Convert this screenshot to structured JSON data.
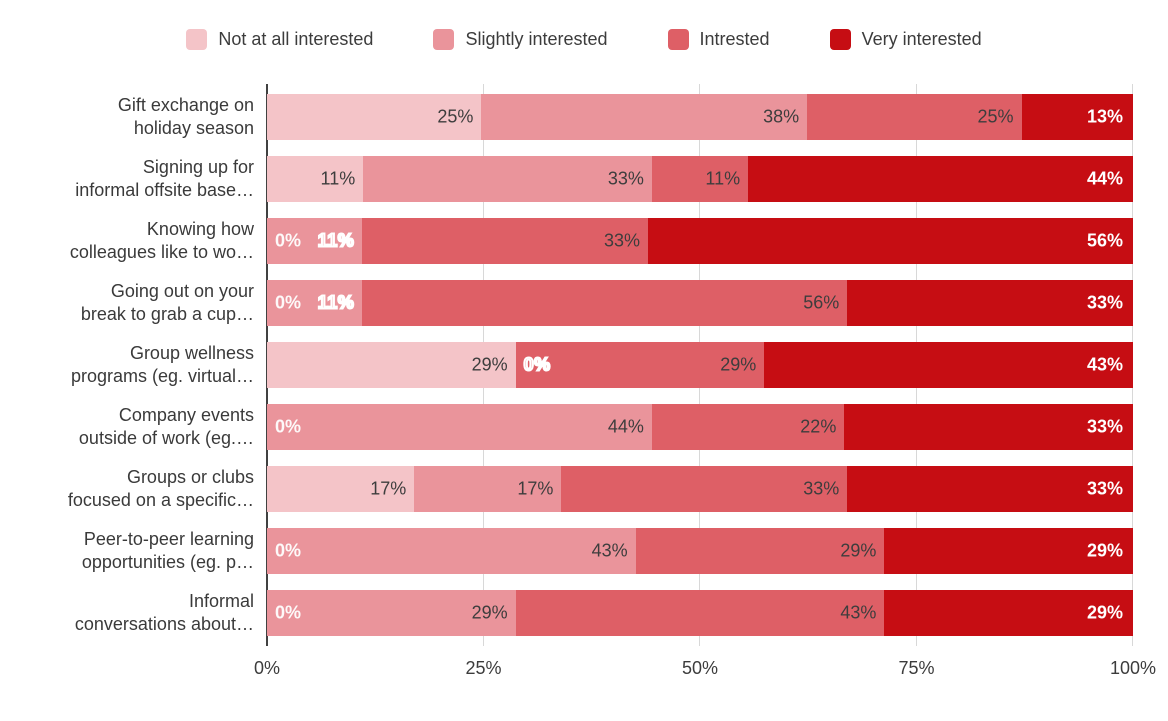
{
  "chart_data": {
    "type": "bar",
    "variant": "horizontal-stacked-percent",
    "title": "",
    "legend_position": "top",
    "grid": true,
    "x_range": [
      0,
      100
    ],
    "x_ticks": [
      "0%",
      "25%",
      "50%",
      "75%",
      "100%"
    ],
    "categories": [
      [
        "Gift exchange on",
        "holiday season"
      ],
      [
        "Signing up for",
        "informal offsite base…"
      ],
      [
        "Knowing how",
        "colleagues like to wo…"
      ],
      [
        "Going out on your",
        "break to grab a cup…"
      ],
      [
        "Group wellness",
        "programs (eg. virtual…"
      ],
      [
        "Company events",
        "outside of work (eg.…"
      ],
      [
        "Groups or clubs",
        "focused on a specific…"
      ],
      [
        "Peer-to-peer learning",
        "opportunities (eg. p…"
      ],
      [
        "Informal",
        "conversations about…"
      ]
    ],
    "series": [
      {
        "name": "Not at all interested",
        "color": "#f4c4c8",
        "values": [
          25,
          11,
          0,
          0,
          29,
          0,
          17,
          0,
          0
        ]
      },
      {
        "name": "Slightly interested",
        "color": "#ea949b",
        "values": [
          38,
          33,
          11,
          11,
          0,
          44,
          17,
          43,
          29
        ]
      },
      {
        "name": "Intrested",
        "color": "#de5f66",
        "values": [
          25,
          11,
          33,
          56,
          29,
          22,
          33,
          29,
          43
        ]
      },
      {
        "name": "Very interested",
        "color": "#c60d13",
        "values": [
          13,
          44,
          56,
          33,
          43,
          33,
          33,
          29,
          29
        ]
      }
    ],
    "value_label_suffix": "%",
    "outlined_value_labels": [
      [
        2,
        1
      ],
      [
        3,
        1
      ],
      [
        4,
        1
      ]
    ],
    "colors": {
      "gridline": "#d8d8d8",
      "axis_line": "#414141",
      "dark_label": "#3d3d3d",
      "light_label": "#ffffff"
    }
  }
}
